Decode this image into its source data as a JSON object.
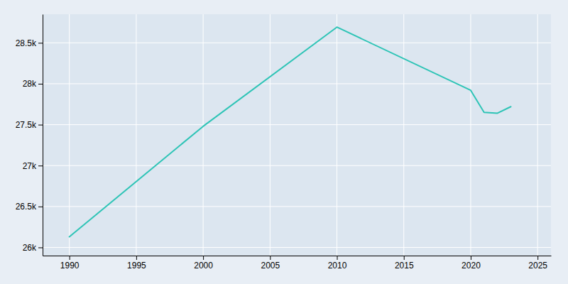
{
  "chart_data": {
    "type": "line",
    "x": [
      1990,
      2000,
      2010,
      2020,
      2021,
      2022,
      2023
    ],
    "values": [
      26130,
      27480,
      28692,
      27920,
      27650,
      27640,
      27720
    ],
    "color": "#2ec4b6",
    "xlim": [
      1988,
      2026
    ],
    "ylim": [
      25900,
      28850
    ],
    "xticks": [
      1990,
      1995,
      2000,
      2005,
      2010,
      2015,
      2020,
      2025
    ],
    "yticks": [
      {
        "value": 26000,
        "label": "26k"
      },
      {
        "value": 26500,
        "label": "26.5k"
      },
      {
        "value": 27000,
        "label": "27k"
      },
      {
        "value": 27500,
        "label": "27.5k"
      },
      {
        "value": 28000,
        "label": "28k"
      },
      {
        "value": 28500,
        "label": "28.5k"
      }
    ],
    "grid": true
  }
}
